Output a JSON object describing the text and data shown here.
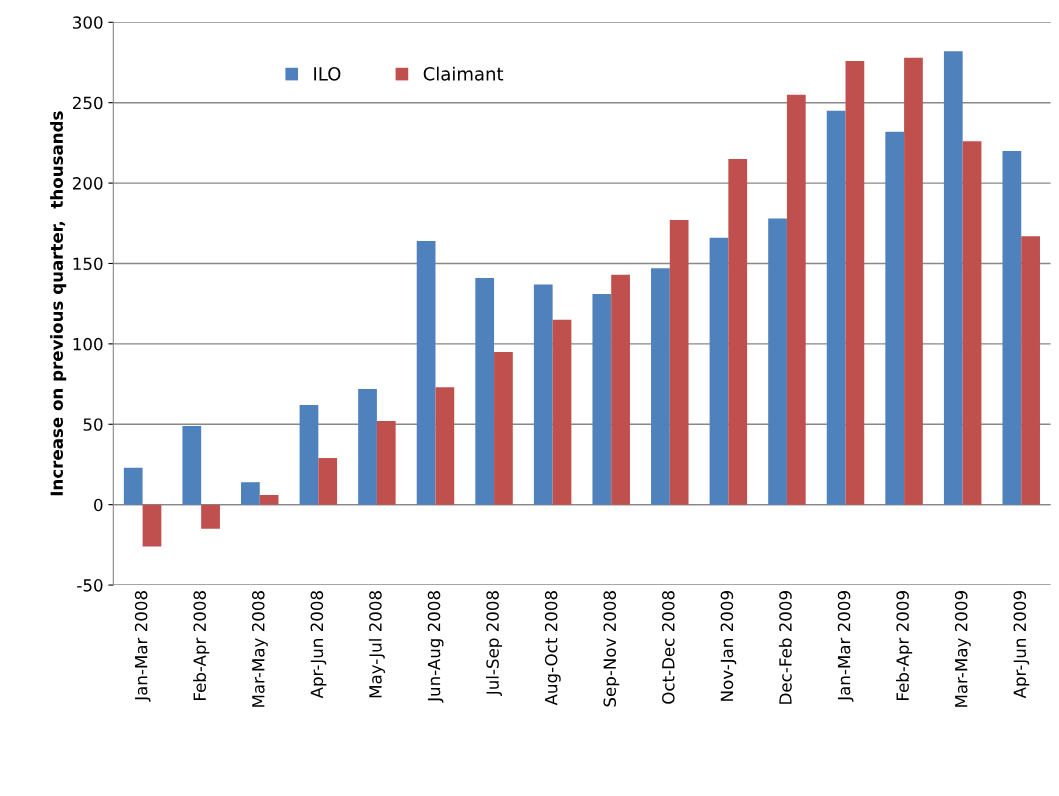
{
  "chart_data": {
    "type": "bar",
    "ylabel": "Increase on previous quarter,  thousands",
    "categories": [
      "Jan-Mar 2008",
      "Feb-Apr 2008",
      "Mar-May 2008",
      "Apr-Jun 2008",
      "May-Jul 2008",
      "Jun-Aug 2008",
      "Jul-Sep 2008",
      "Aug-Oct 2008",
      "Sep-Nov 2008",
      "Oct-Dec 2008",
      "Nov-Jan 2009",
      "Dec-Feb 2009",
      "Jan-Mar 2009",
      "Feb-Apr 2009",
      "Mar-May 2009",
      "Apr-Jun 2009"
    ],
    "series": [
      {
        "name": "ILO",
        "color": "#4f81bd",
        "values": [
          23,
          49,
          14,
          62,
          72,
          164,
          141,
          137,
          131,
          147,
          166,
          178,
          245,
          232,
          282,
          220
        ]
      },
      {
        "name": "Claimant",
        "color": "#c0504d",
        "values": [
          -26,
          -15,
          6,
          29,
          52,
          73,
          95,
          115,
          143,
          177,
          215,
          255,
          276,
          278,
          226,
          167
        ]
      }
    ],
    "ylim": [
      -50,
      300
    ],
    "yticks": [
      -50,
      0,
      50,
      100,
      150,
      200,
      250,
      300
    ],
    "grid": "y",
    "legend": "top"
  }
}
